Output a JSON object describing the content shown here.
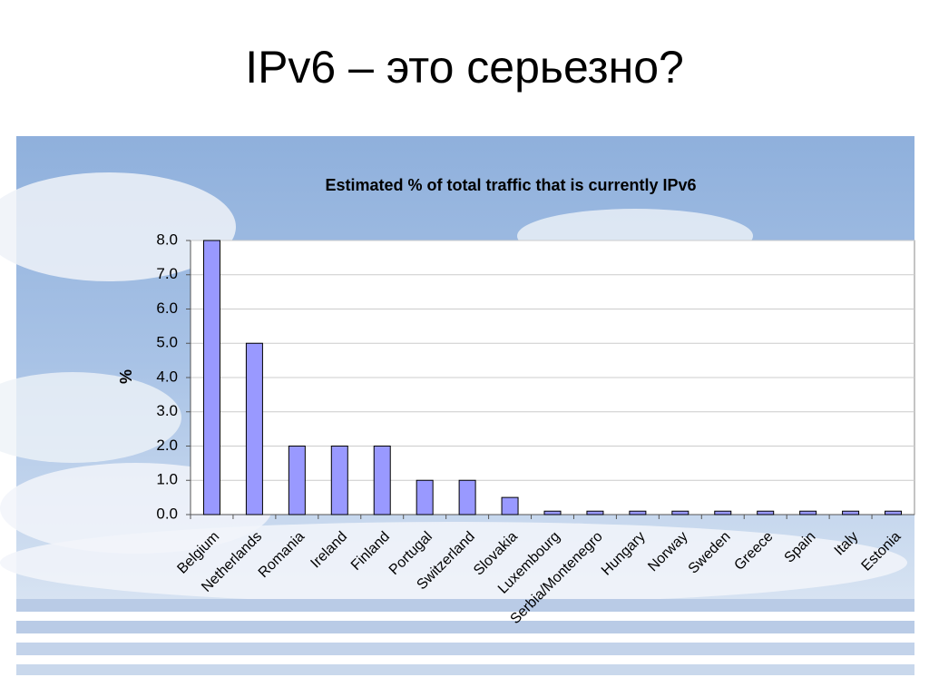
{
  "slide": {
    "title": "IPv6 – это серьезно?"
  },
  "chart_data": {
    "type": "bar",
    "title": "Estimated % of total traffic that is currently IPv6",
    "y_label": "%",
    "categories": [
      "Belgium",
      "Netherlands",
      "Romania",
      "Ireland",
      "Finland",
      "Portugal",
      "Switzerland",
      "Slovakia",
      "Luxembourg",
      "Serbia/Montenegro",
      "Hungary",
      "Norway",
      "Sweden",
      "Greece",
      "Spain",
      "Italy",
      "Estonia"
    ],
    "values": [
      8.0,
      5.0,
      2.0,
      2.0,
      2.0,
      1.0,
      1.0,
      0.5,
      0.1,
      0.1,
      0.1,
      0.1,
      0.1,
      0.1,
      0.1,
      0.1,
      0.1
    ],
    "color": "#9999ff",
    "ylim": [
      0,
      8
    ],
    "yticks": [
      {
        "value": 0,
        "label": "0.0"
      },
      {
        "value": 1,
        "label": "1.0"
      },
      {
        "value": 2,
        "label": "2.0"
      },
      {
        "value": 3,
        "label": "3.0"
      },
      {
        "value": 4,
        "label": "4.0"
      },
      {
        "value": 5,
        "label": "5.0"
      },
      {
        "value": 6,
        "label": "6.0"
      },
      {
        "value": 7,
        "label": "7.0"
      },
      {
        "value": 8,
        "label": "8.0"
      }
    ],
    "grid": true
  }
}
